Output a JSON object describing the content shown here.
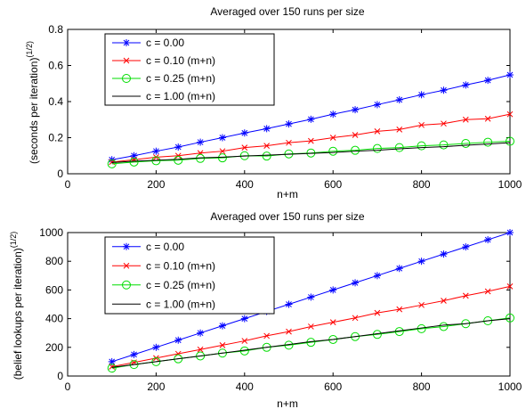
{
  "chart_data": [
    {
      "type": "line",
      "title": "Averaged over 150 runs per size",
      "xlabel": "n+m",
      "ylabel": "(seconds per iteration)",
      "ylabel_sup": "(1/2)",
      "xlim": [
        0,
        1000
      ],
      "ylim": [
        0,
        0.8
      ],
      "xticks": [
        0,
        200,
        400,
        600,
        800,
        1000
      ],
      "yticks": [
        0,
        0.2,
        0.4,
        0.6,
        0.8
      ],
      "ytick_labels": [
        "0",
        "0.2",
        "0.4",
        "0.6",
        "0.8"
      ],
      "xtick_labels": [
        "0",
        "200",
        "400",
        "600",
        "800",
        "1000"
      ],
      "legend_position": "top-left",
      "x": [
        100,
        150,
        200,
        250,
        300,
        350,
        400,
        450,
        500,
        550,
        600,
        650,
        700,
        750,
        800,
        850,
        900,
        950,
        1000
      ],
      "series": [
        {
          "name": "c = 0.00",
          "color": "#0000ff",
          "marker": "asterisk",
          "values": [
            0.078,
            0.1,
            0.125,
            0.148,
            0.175,
            0.2,
            0.226,
            0.25,
            0.276,
            0.302,
            0.33,
            0.355,
            0.383,
            0.41,
            0.438,
            0.463,
            0.492,
            0.518,
            0.548
          ]
        },
        {
          "name": "c = 0.10 (m+n)",
          "color": "#ff0000",
          "marker": "x",
          "values": [
            0.065,
            0.078,
            0.092,
            0.1,
            0.115,
            0.125,
            0.145,
            0.155,
            0.172,
            0.182,
            0.2,
            0.215,
            0.235,
            0.245,
            0.27,
            0.278,
            0.3,
            0.305,
            0.33
          ]
        },
        {
          "name": "c = 0.25 (m+n)",
          "color": "#00dd00",
          "marker": "circle",
          "values": [
            0.055,
            0.065,
            0.072,
            0.075,
            0.085,
            0.088,
            0.1,
            0.098,
            0.11,
            0.115,
            0.125,
            0.13,
            0.14,
            0.145,
            0.155,
            0.16,
            0.168,
            0.175,
            0.18
          ]
        },
        {
          "name": "c = 1.00 (m+n)",
          "color": "#000000",
          "marker": "none",
          "values": [
            0.062,
            0.07,
            0.075,
            0.08,
            0.088,
            0.092,
            0.098,
            0.103,
            0.108,
            0.113,
            0.118,
            0.125,
            0.13,
            0.138,
            0.145,
            0.15,
            0.158,
            0.165,
            0.172
          ]
        }
      ]
    },
    {
      "type": "line",
      "title": "Averaged over 150 runs per size",
      "xlabel": "n+m",
      "ylabel": "(belief lookups per iteration)",
      "ylabel_sup": "(1/2)",
      "xlim": [
        0,
        1000
      ],
      "ylim": [
        0,
        1000
      ],
      "xticks": [
        0,
        200,
        400,
        600,
        800,
        1000
      ],
      "yticks": [
        0,
        200,
        400,
        600,
        800,
        1000
      ],
      "ytick_labels": [
        "0",
        "200",
        "400",
        "600",
        "800",
        "1000"
      ],
      "xtick_labels": [
        "0",
        "200",
        "400",
        "600",
        "800",
        "1000"
      ],
      "legend_position": "top-left",
      "x": [
        100,
        150,
        200,
        250,
        300,
        350,
        400,
        450,
        500,
        550,
        600,
        650,
        700,
        750,
        800,
        850,
        900,
        950,
        1000
      ],
      "series": [
        {
          "name": "c = 0.00",
          "color": "#0000ff",
          "marker": "asterisk",
          "values": [
            100,
            150,
            200,
            250,
            300,
            350,
            400,
            450,
            500,
            550,
            600,
            650,
            700,
            750,
            800,
            850,
            900,
            950,
            1000
          ]
        },
        {
          "name": "c = 0.10 (m+n)",
          "color": "#ff0000",
          "marker": "x",
          "values": [
            65,
            95,
            125,
            155,
            185,
            215,
            245,
            280,
            310,
            345,
            375,
            405,
            440,
            465,
            495,
            525,
            560,
            590,
            625
          ]
        },
        {
          "name": "c = 0.25 (m+n)",
          "color": "#00dd00",
          "marker": "circle",
          "values": [
            55,
            80,
            100,
            120,
            140,
            160,
            175,
            200,
            215,
            235,
            255,
            275,
            290,
            310,
            330,
            345,
            365,
            385,
            405
          ]
        },
        {
          "name": "c = 1.00 (m+n)",
          "color": "#000000",
          "marker": "none",
          "values": [
            60,
            80,
            100,
            120,
            140,
            160,
            180,
            200,
            220,
            240,
            255,
            275,
            295,
            315,
            335,
            355,
            365,
            385,
            400
          ]
        }
      ]
    }
  ]
}
